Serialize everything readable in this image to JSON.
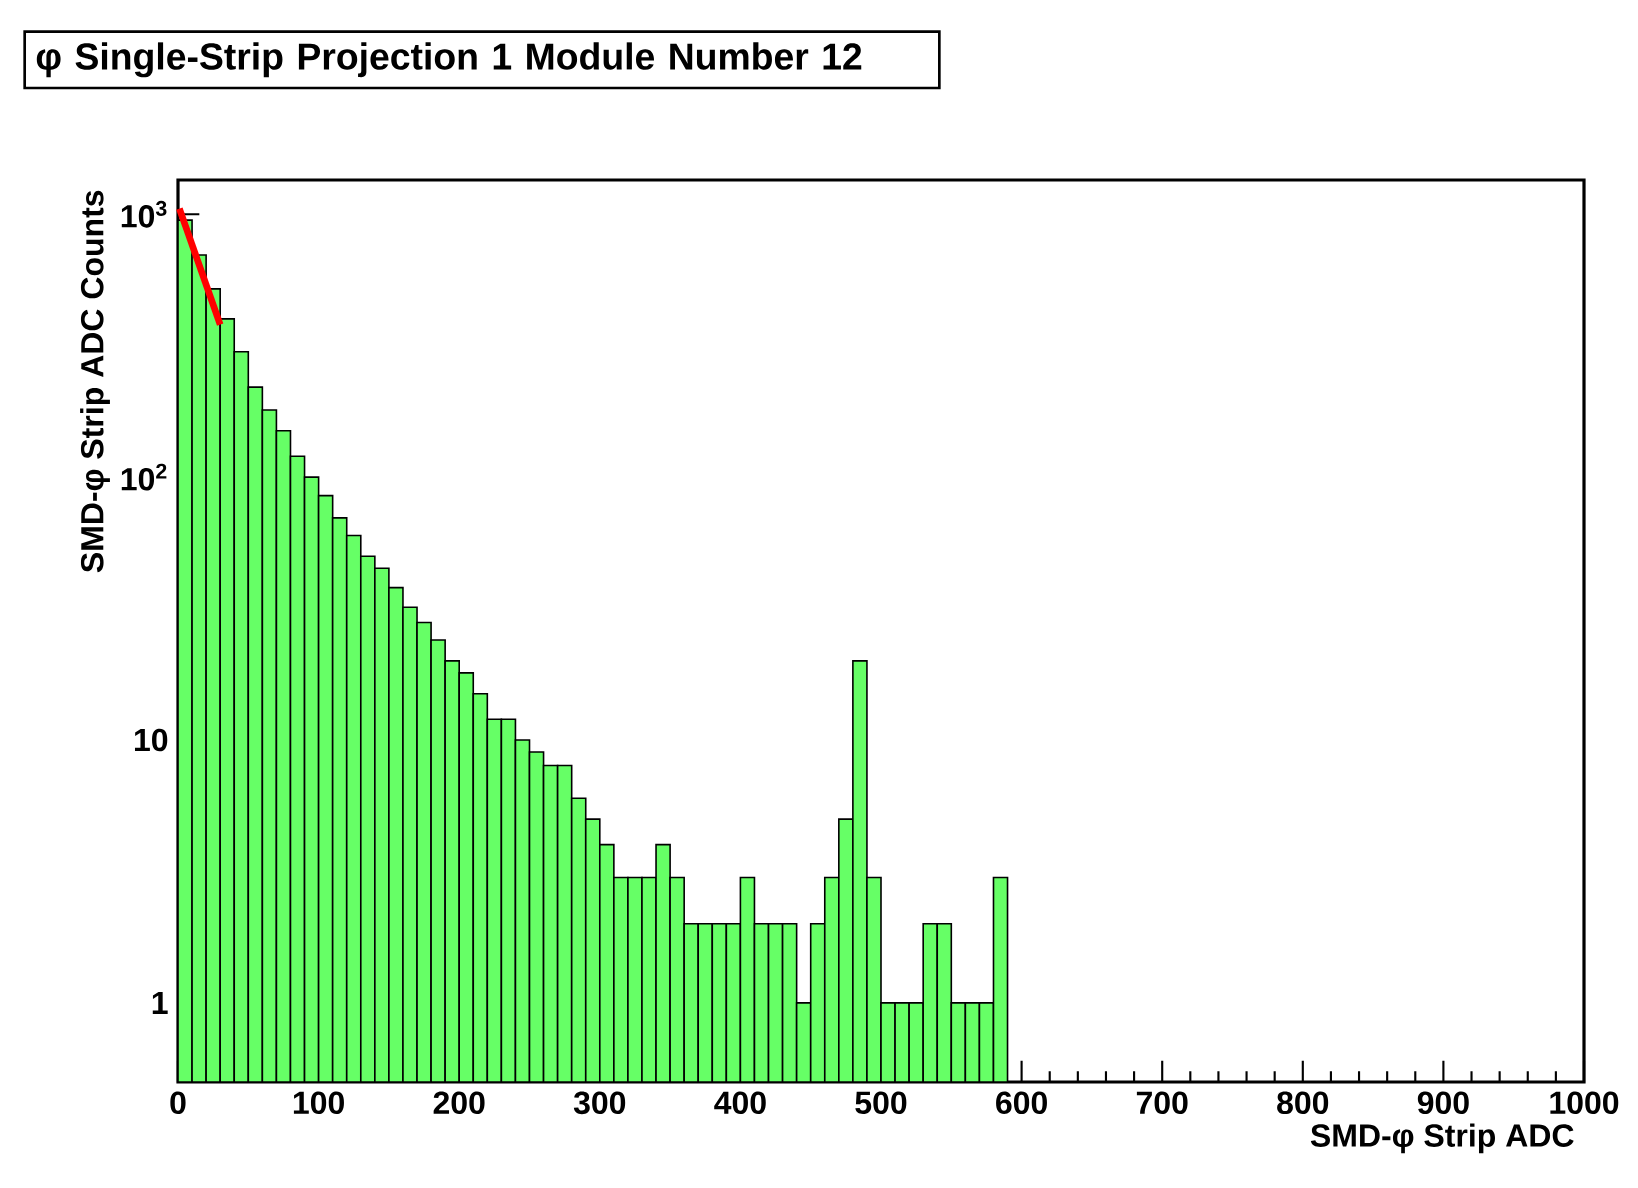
{
  "chart_data": {
    "type": "histogram",
    "title": "φ Single-Strip Projection 1 Module Number 12",
    "xlabel": "SMD-φ Strip ADC",
    "ylabel": "SMD-φ Strip ADC Counts",
    "bins": [
      0,
      10,
      20,
      30,
      40,
      50,
      60,
      70,
      80,
      90,
      100,
      110,
      120,
      130,
      140,
      150,
      160,
      170,
      180,
      190,
      200,
      210,
      220,
      230,
      240,
      250,
      260,
      270,
      280,
      290,
      300,
      310,
      320,
      330,
      340,
      350,
      360,
      370,
      380,
      390,
      400,
      410,
      420,
      430,
      440,
      450,
      460,
      470,
      480,
      490,
      500,
      510,
      520,
      530,
      540,
      550,
      560,
      570,
      580,
      590
    ],
    "values": [
      950,
      700,
      520,
      400,
      300,
      220,
      180,
      150,
      120,
      100,
      85,
      70,
      60,
      50,
      45,
      38,
      32,
      28,
      24,
      20,
      18,
      15,
      12,
      12,
      10,
      9,
      8,
      8,
      6,
      5,
      4,
      3,
      3,
      3,
      4,
      3,
      2,
      2,
      2,
      2,
      3,
      2,
      2,
      2,
      1,
      2,
      3,
      5,
      20,
      3,
      1,
      1,
      1,
      2,
      2,
      1,
      1,
      1,
      3
    ],
    "color": "#66ff66",
    "xlim": [
      0,
      1000
    ],
    "xticks": [
      0,
      100,
      200,
      300,
      400,
      500,
      600,
      700,
      800,
      900,
      1000
    ],
    "ylim": [
      0.5,
      1350
    ],
    "yticks": [
      {
        "value": 1,
        "label": "1"
      },
      {
        "value": 10,
        "label": "10"
      },
      {
        "value": 100,
        "label": "10$^{2}$"
      },
      {
        "value": 1000,
        "label": "10$^{3}$"
      }
    ],
    "log": "y",
    "series": [
      {
        "type": "line",
        "color": "#ff0000",
        "x": [
          1,
          30
        ],
        "values": [
          1050,
          380
        ]
      }
    ]
  }
}
